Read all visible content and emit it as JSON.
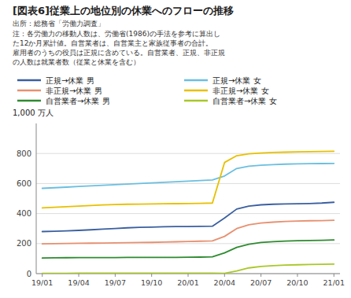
{
  "chart_data": {
    "type": "line",
    "title": "[図表6]従業上の地位別の休業へのフローの推移",
    "subtitle": "出所：総務省「労働力調査」",
    "annotations": [
      "注：各労働力の移動人数は、労働省(1986)の手法を参考に算出し",
      "た12か月累計値。自営業者は、自営業主と家族従事者の合計。",
      "雇用者のうちの役員は正規に含めている。自営業者、正規、非正規",
      "の人数は就業者数（従業と休業を含む）"
    ],
    "ylabel": "1,000 万人",
    "categories": [
      "19/01",
      null,
      null,
      "19/04",
      null,
      null,
      "19/07",
      null,
      null,
      "19/10",
      null,
      null,
      "20/01",
      null,
      null,
      "20/04",
      null,
      null,
      "20/07",
      null,
      null,
      "20/10",
      null,
      null,
      "21/01"
    ],
    "series": [
      {
        "name": "正規→休業 男",
        "color": "#3a5fa0",
        "values": [
          280,
          282,
          285,
          288,
          292,
          296,
          300,
          305,
          308,
          310,
          312,
          313,
          314,
          315,
          316,
          370,
          430,
          450,
          458,
          462,
          464,
          465,
          467,
          470,
          475
        ]
      },
      {
        "name": "正規→休業 女",
        "color": "#6bbfe0",
        "values": [
          568,
          572,
          576,
          580,
          584,
          588,
          592,
          596,
          600,
          604,
          608,
          612,
          616,
          620,
          624,
          650,
          700,
          715,
          722,
          726,
          729,
          731,
          732,
          733,
          734
        ]
      },
      {
        "name": "非正規→休業 男",
        "color": "#e89070",
        "values": [
          198,
          200,
          201,
          202,
          203,
          204,
          205,
          206,
          207,
          208,
          210,
          212,
          214,
          216,
          218,
          248,
          300,
          325,
          337,
          343,
          347,
          350,
          352,
          353,
          355
        ]
      },
      {
        "name": "非正規→休業 女",
        "color": "#e8c000",
        "values": [
          438,
          442,
          446,
          450,
          454,
          457,
          460,
          462,
          463,
          464,
          465,
          466,
          467,
          468,
          470,
          740,
          785,
          798,
          803,
          807,
          809,
          811,
          812,
          813,
          815
        ]
      },
      {
        "name": "自営業者→休業 男",
        "color": "#2e8b30",
        "values": [
          104,
          105,
          106,
          107,
          107,
          107,
          107,
          108,
          108,
          108,
          108,
          108,
          109,
          110,
          112,
          138,
          175,
          196,
          207,
          213,
          217,
          219,
          221,
          222,
          224
        ]
      },
      {
        "name": "自営業者→休業 女",
        "color": "#a8c828",
        "values": [
          2,
          2,
          2,
          3,
          3,
          3,
          3,
          3,
          3,
          3,
          3,
          3,
          3,
          3,
          3,
          2,
          18,
          38,
          48,
          53,
          57,
          59,
          61,
          62,
          64
        ]
      }
    ],
    "ylim": [
      0,
      1000
    ],
    "yticks": [
      0,
      200,
      400,
      600,
      800
    ],
    "grid": true
  }
}
